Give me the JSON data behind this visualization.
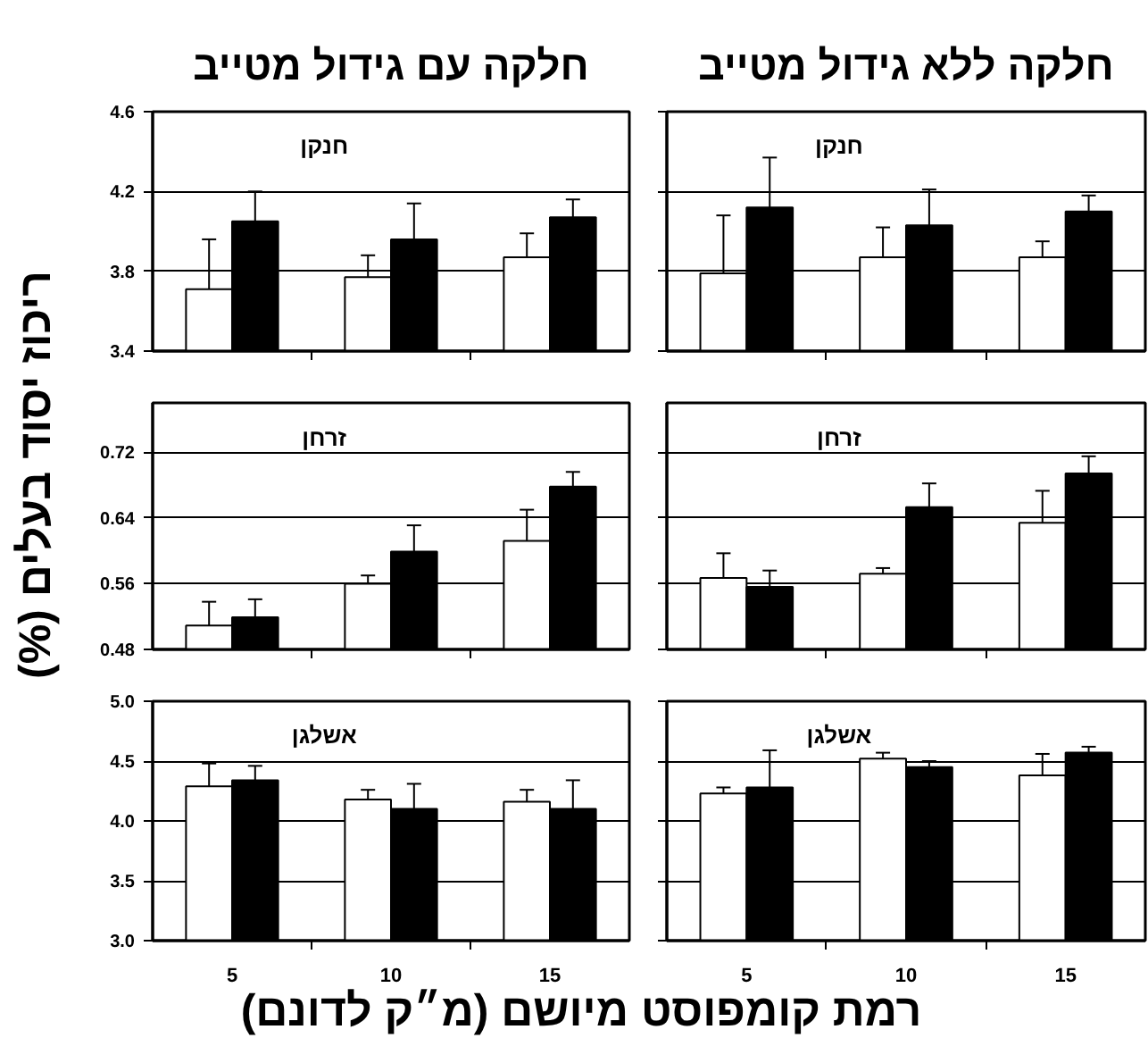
{
  "chart_data": [
    {
      "type": "bar",
      "title": "חלקה עם גידול מטייב",
      "annotations": [
        "חנקן"
      ],
      "categories": [
        "5",
        "10",
        "15"
      ],
      "series": [
        {
          "color": "#ffffff",
          "values": [
            3.71,
            3.77,
            3.87
          ],
          "errors": [
            [
              3.71,
              3.96
            ],
            [
              3.77,
              3.88
            ],
            [
              3.87,
              3.99
            ]
          ]
        },
        {
          "color": "#000000",
          "values": [
            4.05,
            3.96,
            4.07
          ],
          "errors": [
            [
              4.05,
              4.2
            ],
            [
              3.96,
              4.14
            ],
            [
              4.07,
              4.16
            ]
          ]
        }
      ],
      "ylim": [
        3.4,
        4.6
      ],
      "yticks": [
        3.4,
        3.8,
        4.2,
        4.6
      ],
      "grid": "y",
      "tick_labels": "y"
    },
    {
      "type": "bar",
      "title": "חלקה ללא גידול מטייב",
      "annotations": [
        "חנקן"
      ],
      "categories": [
        "5",
        "10",
        "15"
      ],
      "series": [
        {
          "color": "#ffffff",
          "values": [
            3.79,
            3.87,
            3.87
          ],
          "errors": [
            [
              3.79,
              4.08
            ],
            [
              3.87,
              4.02
            ],
            [
              3.87,
              3.95
            ]
          ]
        },
        {
          "color": "#000000",
          "values": [
            4.12,
            4.03,
            4.1
          ],
          "errors": [
            [
              4.12,
              4.37
            ],
            [
              4.03,
              4.21
            ],
            [
              4.1,
              4.18
            ]
          ]
        }
      ],
      "ylim": [
        3.4,
        4.6
      ],
      "yticks": [
        3.4,
        3.8,
        4.2,
        4.6
      ],
      "grid": "y",
      "tick_labels": false
    },
    {
      "type": "bar",
      "ylabel": "ריכוז יסוד בעלים (%)",
      "annotations": [
        "זרחן"
      ],
      "categories": [
        "5",
        "10",
        "15"
      ],
      "series": [
        {
          "color": "#ffffff",
          "values": [
            0.509,
            0.56,
            0.612
          ],
          "errors": [
            [
              0.509,
              0.538
            ],
            [
              0.56,
              0.57
            ],
            [
              0.612,
              0.65
            ]
          ]
        },
        {
          "color": "#000000",
          "values": [
            0.519,
            0.599,
            0.678
          ],
          "errors": [
            [
              0.519,
              0.541
            ],
            [
              0.599,
              0.631
            ],
            [
              0.678,
              0.696
            ]
          ]
        }
      ],
      "ylim": [
        0.48,
        0.78
      ],
      "yticks": [
        0.48,
        0.56,
        0.64,
        0.72
      ],
      "grid": "y",
      "tick_labels": "y"
    },
    {
      "type": "bar",
      "annotations": [
        "זרחן"
      ],
      "categories": [
        "5",
        "10",
        "15"
      ],
      "series": [
        {
          "color": "#ffffff",
          "values": [
            0.567,
            0.572,
            0.634
          ],
          "errors": [
            [
              0.567,
              0.597
            ],
            [
              0.572,
              0.579
            ],
            [
              0.634,
              0.673
            ]
          ]
        },
        {
          "color": "#000000",
          "values": [
            0.556,
            0.653,
            0.694
          ],
          "errors": [
            [
              0.556,
              0.576
            ],
            [
              0.653,
              0.682
            ],
            [
              0.694,
              0.715
            ]
          ]
        }
      ],
      "ylim": [
        0.48,
        0.78
      ],
      "yticks": [
        0.48,
        0.56,
        0.64,
        0.72
      ],
      "grid": "y",
      "tick_labels": false
    },
    {
      "type": "bar",
      "xlabel": "רמת קומפוסט מיושם (מ״ק לדונם)",
      "annotations": [
        "אשלגן"
      ],
      "categories": [
        "5",
        "10",
        "15"
      ],
      "series": [
        {
          "color": "#ffffff",
          "values": [
            4.29,
            4.18,
            4.16
          ],
          "errors": [
            [
              4.29,
              4.48
            ],
            [
              4.18,
              4.26
            ],
            [
              4.16,
              4.26
            ]
          ]
        },
        {
          "color": "#000000",
          "values": [
            4.34,
            4.1,
            4.1
          ],
          "errors": [
            [
              4.34,
              4.46
            ],
            [
              4.1,
              4.31
            ],
            [
              4.1,
              4.34
            ]
          ]
        }
      ],
      "ylim": [
        3,
        5
      ],
      "yticks": [
        {
          "value": 3,
          "label": "3.0"
        },
        3.5,
        {
          "value": 4,
          "label": "4.0"
        },
        4.5,
        {
          "value": 5,
          "label": "5.0"
        }
      ],
      "grid": "y"
    },
    {
      "type": "bar",
      "annotations": [
        "אשלגן"
      ],
      "categories": [
        "5",
        "10",
        "15"
      ],
      "series": [
        {
          "color": "#ffffff",
          "values": [
            4.23,
            4.52,
            4.38
          ],
          "errors": [
            [
              4.23,
              4.28
            ],
            [
              4.52,
              4.57
            ],
            [
              4.38,
              4.56
            ]
          ]
        },
        {
          "color": "#000000",
          "values": [
            4.28,
            4.45,
            4.57
          ],
          "errors": [
            [
              4.28,
              4.59
            ],
            [
              4.45,
              4.5
            ],
            [
              4.57,
              4.62
            ]
          ]
        }
      ],
      "ylim": [
        3,
        5
      ],
      "yticks": [
        3,
        3.5,
        4,
        4.5,
        5
      ],
      "grid": "y",
      "tick_labels": "x"
    }
  ]
}
